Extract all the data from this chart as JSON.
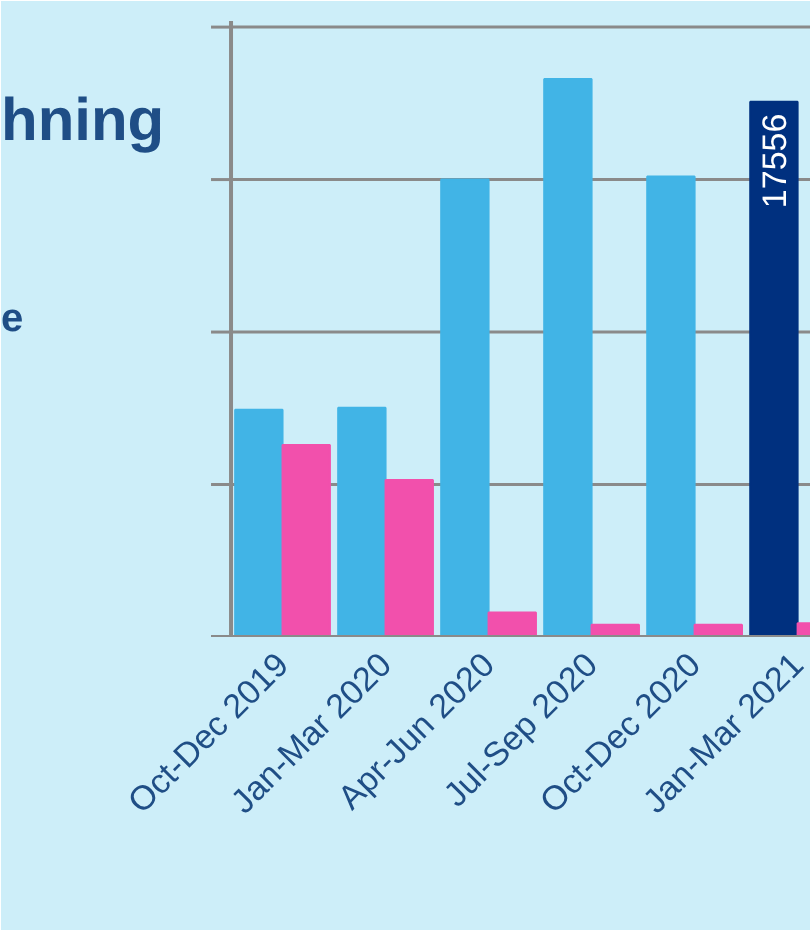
{
  "chart_data": {
    "type": "bar",
    "title": "hning",
    "subtitle": "e",
    "categories": [
      "Oct-Dec 2019",
      "Jan-Mar 2020",
      "Apr-Jun 2020",
      "Jul-Sep 2020",
      "Oct-Dec 2020",
      "Jan-Mar 2021"
    ],
    "series": [
      {
        "color": "#41b4e6",
        "colors": [
          "#41b4e6",
          "#41b4e6",
          "#41b4e6",
          "#41b4e6",
          "#41b4e6",
          "#00307f"
        ],
        "values": [
          7450,
          7520,
          15000,
          18300,
          15100,
          17556
        ],
        "value_labels": [
          null,
          null,
          null,
          null,
          null,
          "17556"
        ]
      },
      {
        "color": "#f250ac",
        "values": [
          6300,
          5150,
          800,
          400,
          400,
          450
        ]
      }
    ],
    "ylim": [
      0,
      20200
    ],
    "yticks": [
      {
        "value": 0,
        "label": null
      },
      {
        "value": 5000,
        "label": null
      },
      {
        "value": 10000,
        "label": null
      },
      {
        "value": 15000,
        "label": null
      },
      {
        "value": 20000,
        "label": null
      }
    ],
    "grid": "y",
    "tick_labels": "x"
  }
}
